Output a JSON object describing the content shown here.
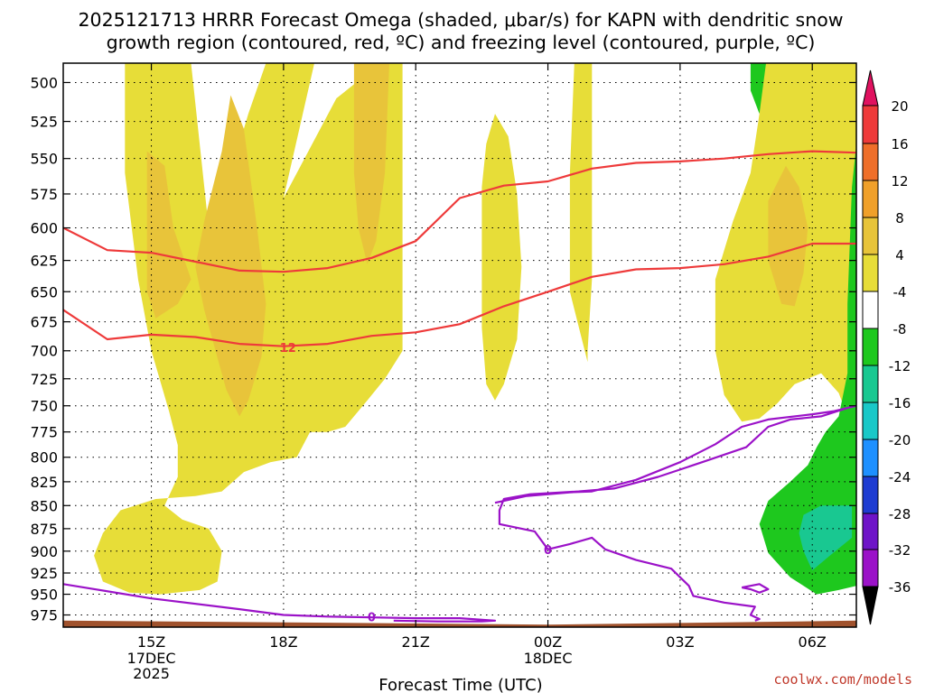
{
  "title": {
    "line1": "2025121713 HRRR Forecast Omega (shaded, μbar/s) for KAPN with dendritic snow",
    "line2": "growth region (contoured, red, ºC) and freezing level (contoured, purple, ºC)"
  },
  "credit": "coolwx.com/models",
  "chart_data": {
    "type": "contour",
    "xlabel": "Forecast Time (UTC)",
    "ylabel": "",
    "x_range_hours": [
      13.0,
      31.0
    ],
    "y_scale": "log-pressure",
    "y_range_hPa": [
      488,
      990
    ],
    "y_ticks": [
      500,
      525,
      550,
      575,
      600,
      625,
      650,
      675,
      700,
      725,
      750,
      775,
      800,
      825,
      850,
      875,
      900,
      925,
      950,
      975
    ],
    "x_ticks": [
      {
        "t": 15,
        "label": "15Z",
        "sub": [
          "17DEC",
          "2025"
        ]
      },
      {
        "t": 18,
        "label": "18Z",
        "sub": []
      },
      {
        "t": 21,
        "label": "21Z",
        "sub": []
      },
      {
        "t": 24,
        "label": "00Z",
        "sub": [
          "18DEC"
        ]
      },
      {
        "t": 27,
        "label": "03Z",
        "sub": []
      },
      {
        "t": 30,
        "label": "06Z",
        "sub": []
      }
    ],
    "grid": true,
    "colorbar": {
      "levels": [
        20,
        16,
        12,
        8,
        4,
        -4,
        -8,
        -12,
        -16,
        -20,
        -24,
        -28,
        -32,
        -36
      ],
      "colors": [
        "#e0115f",
        "#ee3a3a",
        "#ef6f2a",
        "#f0a02a",
        "#e8c43a",
        "#e7dd38",
        "#ffffff",
        "#1ec81e",
        "#19c891",
        "#19c8c8",
        "#1e90ff",
        "#1e3cd2",
        "#6e14c8",
        "#9b12c8",
        "#a0a0a0",
        "#000000"
      ]
    },
    "omega_regions": [
      {
        "level": "4 to 8",
        "color": "#e7dd38",
        "polygon": [
          [
            14.4,
            488
          ],
          [
            15.9,
            488
          ],
          [
            16.3,
            600
          ],
          [
            16.8,
            560
          ],
          [
            17.2,
            520
          ],
          [
            17.6,
            488
          ],
          [
            18.7,
            488
          ],
          [
            18.0,
            578
          ],
          [
            19.2,
            510
          ],
          [
            20.2,
            488
          ],
          [
            20.7,
            488
          ],
          [
            20.7,
            700
          ],
          [
            20.3,
            725
          ],
          [
            19.9,
            745
          ],
          [
            19.4,
            770
          ],
          [
            19.0,
            775
          ],
          [
            18.6,
            775
          ],
          [
            18.3,
            800
          ],
          [
            17.7,
            805
          ],
          [
            17.1,
            815
          ],
          [
            16.6,
            835
          ],
          [
            16.0,
            840
          ],
          [
            15.1,
            843
          ],
          [
            14.3,
            855
          ],
          [
            13.9,
            880
          ],
          [
            13.7,
            905
          ],
          [
            13.9,
            935
          ],
          [
            14.5,
            948
          ],
          [
            15.2,
            950
          ],
          [
            16.1,
            945
          ],
          [
            16.5,
            935
          ],
          [
            16.6,
            900
          ],
          [
            16.3,
            875
          ],
          [
            15.7,
            865
          ],
          [
            15.3,
            850
          ],
          [
            15.6,
            820
          ],
          [
            15.6,
            788
          ],
          [
            15.4,
            755
          ],
          [
            15.0,
            700
          ],
          [
            14.7,
            640
          ],
          [
            14.4,
            560
          ]
        ]
      },
      {
        "level": "4 to 8",
        "color": "#e7dd38",
        "polygon": [
          [
            22.6,
            540
          ],
          [
            22.8,
            520
          ],
          [
            23.1,
            535
          ],
          [
            23.3,
            575
          ],
          [
            23.4,
            630
          ],
          [
            23.3,
            690
          ],
          [
            23.0,
            730
          ],
          [
            22.8,
            745
          ],
          [
            22.6,
            730
          ],
          [
            22.5,
            680
          ],
          [
            22.5,
            610
          ],
          [
            22.5,
            570
          ]
        ]
      },
      {
        "level": "4 to 8",
        "color": "#e7dd38",
        "polygon": [
          [
            24.6,
            488
          ],
          [
            25.0,
            488
          ],
          [
            25.0,
            560
          ],
          [
            25.0,
            640
          ],
          [
            24.9,
            700
          ],
          [
            24.9,
            710
          ],
          [
            24.5,
            650
          ],
          [
            24.5,
            560
          ]
        ]
      },
      {
        "level": "4 to 8",
        "color": "#e7dd38",
        "polygon": [
          [
            27.8,
            640
          ],
          [
            28.2,
            595
          ],
          [
            28.6,
            560
          ],
          [
            28.8,
            520
          ],
          [
            28.9,
            488
          ],
          [
            31.0,
            488
          ],
          [
            31.0,
            758
          ],
          [
            30.8,
            760
          ],
          [
            30.6,
            738
          ],
          [
            30.2,
            720
          ],
          [
            29.6,
            730
          ],
          [
            29.2,
            748
          ],
          [
            28.8,
            762
          ],
          [
            28.4,
            765
          ],
          [
            28.0,
            740
          ],
          [
            27.8,
            700
          ]
        ]
      },
      {
        "level": "8 to 12",
        "color": "#e8c43a",
        "polygon": [
          [
            14.9,
            545
          ],
          [
            15.3,
            555
          ],
          [
            15.5,
            600
          ],
          [
            15.9,
            640
          ],
          [
            15.6,
            660
          ],
          [
            15.1,
            672
          ],
          [
            14.9,
            650
          ],
          [
            14.9,
            600
          ]
        ]
      },
      {
        "level": "8 to 12",
        "color": "#e8c43a",
        "polygon": [
          [
            16.8,
            508
          ],
          [
            17.1,
            530
          ],
          [
            17.4,
            600
          ],
          [
            17.6,
            660
          ],
          [
            17.5,
            705
          ],
          [
            17.2,
            745
          ],
          [
            17.0,
            760
          ],
          [
            16.7,
            735
          ],
          [
            16.2,
            665
          ],
          [
            16.0,
            630
          ],
          [
            16.2,
            595
          ],
          [
            16.6,
            545
          ]
        ]
      },
      {
        "level": "8 to 12",
        "color": "#e8c43a",
        "polygon": [
          [
            19.6,
            488
          ],
          [
            20.4,
            488
          ],
          [
            20.3,
            560
          ],
          [
            20.1,
            610
          ],
          [
            19.9,
            628
          ],
          [
            19.7,
            600
          ],
          [
            19.6,
            560
          ]
        ]
      },
      {
        "level": "8 to 12",
        "color": "#e8c43a",
        "polygon": [
          [
            29.4,
            555
          ],
          [
            29.7,
            570
          ],
          [
            29.9,
            600
          ],
          [
            29.8,
            635
          ],
          [
            29.6,
            662
          ],
          [
            29.3,
            660
          ],
          [
            29.0,
            625
          ],
          [
            29.0,
            580
          ]
        ]
      },
      {
        "level": "-4 to -8",
        "color": "#1ec81e",
        "polygon": [
          [
            28.6,
            488
          ],
          [
            28.95,
            488
          ],
          [
            28.8,
            520
          ],
          [
            28.6,
            505
          ]
        ]
      },
      {
        "level": "-4 to -8",
        "color": "#1ec81e",
        "polygon": [
          [
            31.0,
            540
          ],
          [
            30.9,
            570
          ],
          [
            30.8,
            660
          ],
          [
            30.8,
            720
          ],
          [
            30.6,
            760
          ],
          [
            30.3,
            775
          ],
          [
            30.1,
            790
          ],
          [
            29.9,
            808
          ],
          [
            29.5,
            825
          ],
          [
            29.0,
            845
          ],
          [
            28.8,
            870
          ],
          [
            29.0,
            902
          ],
          [
            29.5,
            930
          ],
          [
            30.1,
            950
          ],
          [
            30.6,
            945
          ],
          [
            31.0,
            940
          ]
        ]
      },
      {
        "level": "-8 to -12",
        "color": "#19c891",
        "polygon": [
          [
            29.8,
            860
          ],
          [
            30.2,
            850
          ],
          [
            30.9,
            850
          ],
          [
            30.9,
            885
          ],
          [
            30.4,
            905
          ],
          [
            30.0,
            922
          ],
          [
            29.8,
            900
          ],
          [
            29.7,
            880
          ]
        ]
      }
    ],
    "ground": {
      "color": "#a0522d",
      "top_hPa": [
        [
          13.0,
          982
        ],
        [
          20.0,
          985
        ],
        [
          24.0,
          987
        ],
        [
          31.0,
          982
        ]
      ]
    },
    "red_contours": [
      {
        "label": "",
        "points": [
          [
            13.0,
            600
          ],
          [
            14.0,
            617
          ],
          [
            15.0,
            619
          ],
          [
            16.0,
            626
          ],
          [
            17.0,
            633
          ],
          [
            18.0,
            634
          ],
          [
            19.0,
            631
          ],
          [
            20.0,
            623
          ],
          [
            21.0,
            610
          ],
          [
            22.0,
            578
          ],
          [
            23.0,
            569
          ],
          [
            24.0,
            566
          ],
          [
            25.0,
            557
          ],
          [
            26.0,
            553
          ],
          [
            27.0,
            552
          ],
          [
            28.0,
            550
          ],
          [
            29.0,
            547
          ],
          [
            30.0,
            545
          ],
          [
            31.0,
            546
          ]
        ]
      },
      {
        "label": "12",
        "label_at": [
          18.1,
          697
        ],
        "points": [
          [
            13.0,
            665
          ],
          [
            14.0,
            690
          ],
          [
            15.0,
            686
          ],
          [
            16.0,
            688
          ],
          [
            17.0,
            694
          ],
          [
            18.0,
            696
          ],
          [
            19.0,
            694
          ],
          [
            20.0,
            687
          ],
          [
            21.0,
            684
          ],
          [
            22.0,
            677
          ],
          [
            23.0,
            662
          ],
          [
            24.0,
            650
          ],
          [
            25.0,
            638
          ],
          [
            26.0,
            632
          ],
          [
            27.0,
            631
          ],
          [
            28.0,
            628
          ],
          [
            29.0,
            622
          ],
          [
            30.0,
            612
          ],
          [
            31.0,
            612
          ]
        ]
      }
    ],
    "purple_contours": [
      {
        "label": "0",
        "label_at": [
          20.0,
          977
        ],
        "points": [
          [
            13.0,
            938
          ],
          [
            15.0,
            955
          ],
          [
            17.0,
            968
          ],
          [
            18.0,
            975
          ],
          [
            19.0,
            977
          ],
          [
            20.0,
            978
          ],
          [
            21.0,
            979
          ],
          [
            22.0,
            979
          ],
          [
            22.8,
            982
          ],
          [
            22.5,
            983
          ],
          [
            21.5,
            983
          ],
          [
            20.5,
            982
          ]
        ]
      },
      {
        "label": "0",
        "label_at": [
          24.0,
          898
        ],
        "points": [
          [
            22.8,
            847
          ],
          [
            23.5,
            840
          ],
          [
            24.5,
            836
          ],
          [
            25.0,
            835
          ],
          [
            26.0,
            823
          ],
          [
            27.0,
            805
          ],
          [
            27.8,
            787
          ],
          [
            28.4,
            770
          ],
          [
            29.0,
            763
          ],
          [
            30.0,
            758
          ],
          [
            30.5,
            755
          ],
          [
            31.0,
            750
          ],
          [
            30.8,
            752
          ],
          [
            30.2,
            760
          ],
          [
            29.5,
            763
          ],
          [
            29.0,
            770
          ],
          [
            28.5,
            790
          ],
          [
            27.5,
            805
          ],
          [
            26.5,
            820
          ],
          [
            25.5,
            832
          ],
          [
            24.7,
            835
          ],
          [
            23.6,
            838
          ],
          [
            23.0,
            843
          ],
          [
            22.9,
            855
          ],
          [
            22.9,
            870
          ],
          [
            23.7,
            878
          ],
          [
            24.0,
            898
          ],
          [
            24.5,
            892
          ],
          [
            25.0,
            885
          ],
          [
            25.3,
            898
          ],
          [
            26.0,
            910
          ],
          [
            26.8,
            920
          ],
          [
            27.2,
            940
          ],
          [
            27.3,
            952
          ],
          [
            28.0,
            960
          ],
          [
            28.7,
            965
          ],
          [
            28.6,
            975
          ],
          [
            28.8,
            980
          ],
          [
            28.7,
            982
          ]
        ]
      },
      {
        "label": "",
        "points": [
          [
            28.4,
            942
          ],
          [
            28.8,
            938
          ],
          [
            29.0,
            944
          ],
          [
            28.8,
            948
          ],
          [
            28.6,
            944
          ],
          [
            28.4,
            942
          ]
        ]
      }
    ]
  }
}
